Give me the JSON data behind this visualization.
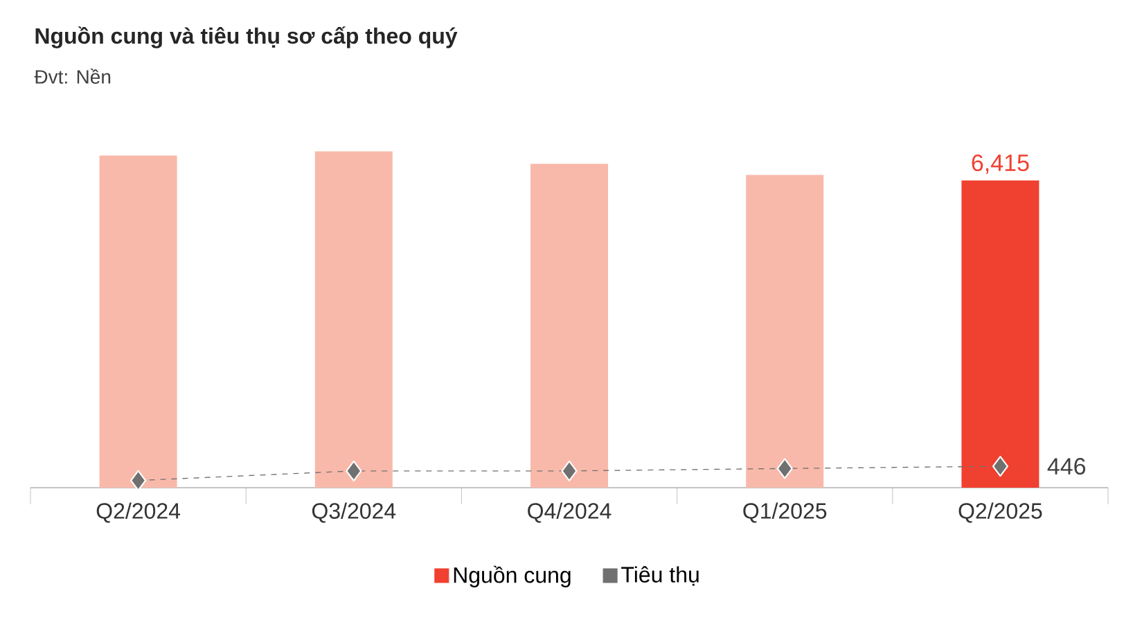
{
  "chart_data": {
    "type": "bar",
    "title": "Nguồn cung và tiêu thụ sơ cấp theo quý",
    "subtitle": "Đvt: Nền",
    "categories": [
      "Q2/2024",
      "Q3/2024",
      "Q4/2024",
      "Q1/2025",
      "Q2/2025"
    ],
    "series": [
      {
        "name": "Nguồn cung",
        "color": "#f04030",
        "colors": [
          "#f9b9aa",
          "#f9b9aa",
          "#f9b9aa",
          "#f9b9aa",
          "#f04030"
        ],
        "values": [
          6935,
          7022,
          6762,
          6531,
          6415
        ],
        "value_labels": [
          null,
          null,
          null,
          null,
          "6,415"
        ]
      },
      {
        "name": "Tiêu thụ",
        "type": "line",
        "color": "#707070",
        "marker": "diamond",
        "line_style": "dashed",
        "values": [
          150,
          350,
          350,
          400,
          446
        ],
        "value_labels": [
          null,
          null,
          null,
          null,
          "446"
        ]
      }
    ],
    "legend": "bottom"
  }
}
